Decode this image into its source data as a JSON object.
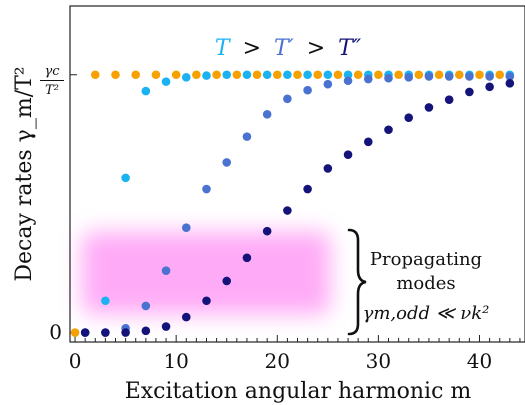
{
  "chart_data": {
    "type": "scatter",
    "xlabel": "Excitation angular harmonic m",
    "ylabel": "Decay rates γ_m/T²",
    "xlim": [
      -0.5,
      44.5
    ],
    "ylim": [
      -0.011,
      0.38
    ],
    "grid": false,
    "x_ticks": [
      0,
      10,
      20,
      30,
      40
    ],
    "x_tick_labels": [
      "0",
      "10",
      "20",
      "30",
      "40"
    ],
    "y_ticks": [
      0,
      0.3
    ],
    "y_tick_labels": [
      "0",
      "γc/T²"
    ],
    "y_tick_label_parts": {
      "numerator": "γc",
      "denominator": "T²"
    },
    "temperature_legend": {
      "parts": [
        "T",
        ">",
        "T′",
        ">",
        "T″"
      ],
      "colors": [
        "#1ab2f0",
        "#111111",
        "#4a72d0",
        "#111111",
        "#14137a"
      ]
    },
    "annotation": {
      "lines": [
        "Propagating",
        "modes",
        "γm,odd ≪ νk²"
      ]
    },
    "series": [
      {
        "color": "#f6a100",
        "x": [
          0,
          2,
          4,
          6,
          8,
          10,
          12,
          14,
          16,
          18,
          20,
          22,
          24,
          26,
          28,
          30,
          32,
          34,
          36,
          38,
          40,
          42
        ],
        "y": [
          0,
          0.3,
          0.3,
          0.3,
          0.3,
          0.3,
          0.3,
          0.3,
          0.3,
          0.3,
          0.3,
          0.3,
          0.3,
          0.3,
          0.3,
          0.3,
          0.3,
          0.3,
          0.3,
          0.3,
          0.3,
          0.3
        ]
      },
      {
        "color": "#1ab2f0",
        "x": [
          1,
          3,
          5,
          7,
          9,
          11,
          13,
          15,
          17,
          19,
          21,
          23,
          25,
          27,
          29,
          31,
          33,
          35,
          37,
          39,
          41,
          43
        ],
        "y": [
          0,
          0.037,
          0.18,
          0.281,
          0.292,
          0.297,
          0.299,
          0.3,
          0.3,
          0.3,
          0.3,
          0.3,
          0.3,
          0.3,
          0.3,
          0.3,
          0.3,
          0.3,
          0.3,
          0.3,
          0.3,
          0.3
        ]
      },
      {
        "color": "#4a72d0",
        "x": [
          1,
          3,
          5,
          7,
          9,
          11,
          13,
          15,
          17,
          19,
          21,
          23,
          25,
          27,
          29,
          31,
          33,
          35,
          37,
          39,
          41,
          43
        ],
        "y": [
          0,
          0,
          0.005,
          0.031,
          0.072,
          0.122,
          0.167,
          0.198,
          0.228,
          0.254,
          0.272,
          0.282,
          0.289,
          0.293,
          0.295,
          0.296,
          0.297,
          0.298,
          0.298,
          0.298,
          0.298,
          0.298
        ]
      },
      {
        "color": "#14137a",
        "x": [
          1,
          3,
          5,
          7,
          9,
          11,
          13,
          15,
          17,
          19,
          21,
          23,
          25,
          27,
          29,
          31,
          33,
          35,
          37,
          39,
          41,
          43
        ],
        "y": [
          0,
          0,
          0,
          0.002,
          0.007,
          0.018,
          0.037,
          0.06,
          0.087,
          0.118,
          0.142,
          0.167,
          0.191,
          0.207,
          0.222,
          0.236,
          0.25,
          0.262,
          0.271,
          0.28,
          0.286,
          0.29
        ]
      }
    ]
  }
}
